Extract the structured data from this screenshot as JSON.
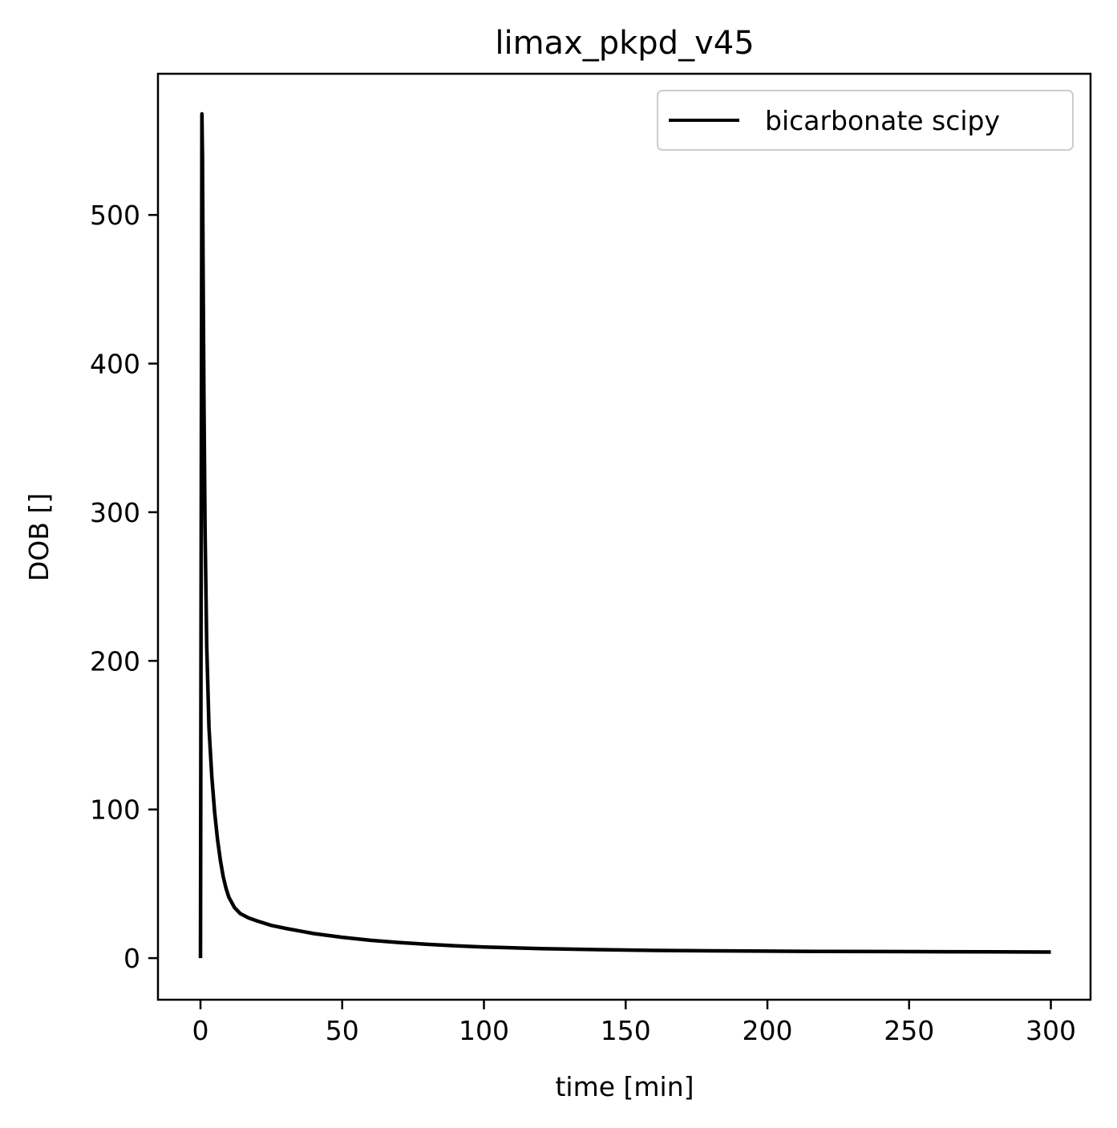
{
  "chart_data": {
    "type": "line",
    "title": "limax_pkpd_v45",
    "xlabel": "time [min]",
    "ylabel": "DOB []",
    "xlim": [
      -15,
      314
    ],
    "ylim": [
      -28,
      595
    ],
    "xticks": [
      0,
      50,
      100,
      150,
      200,
      250,
      300
    ],
    "yticks": [
      0,
      100,
      200,
      300,
      400,
      500
    ],
    "xtick_labels": [
      "0",
      "50",
      "100",
      "150",
      "200",
      "250",
      "300"
    ],
    "ytick_labels": [
      "0",
      "100",
      "200",
      "300",
      "400",
      "500"
    ],
    "grid": false,
    "legend_position": "top-right",
    "series": [
      {
        "name": "bicarbonate scipy",
        "color": "#000000",
        "x": [
          0,
          0.5,
          0.7,
          0.9,
          1.2,
          1.6,
          2.2,
          3,
          4,
          5,
          6,
          7,
          8,
          9,
          10,
          12,
          14,
          17,
          20,
          25,
          30,
          40,
          50,
          60,
          70,
          80,
          90,
          100,
          120,
          140,
          160,
          180,
          200,
          220,
          240,
          260,
          280,
          300
        ],
        "y": [
          0,
          568,
          540,
          470,
          380,
          290,
          210,
          155,
          122,
          98,
          80,
          66,
          55,
          47,
          41,
          34,
          30,
          27,
          25,
          22,
          20,
          16.5,
          14,
          12,
          10.5,
          9.3,
          8.3,
          7.5,
          6.4,
          5.7,
          5.2,
          4.9,
          4.7,
          4.5,
          4.4,
          4.3,
          4.2,
          4.1
        ]
      }
    ]
  }
}
